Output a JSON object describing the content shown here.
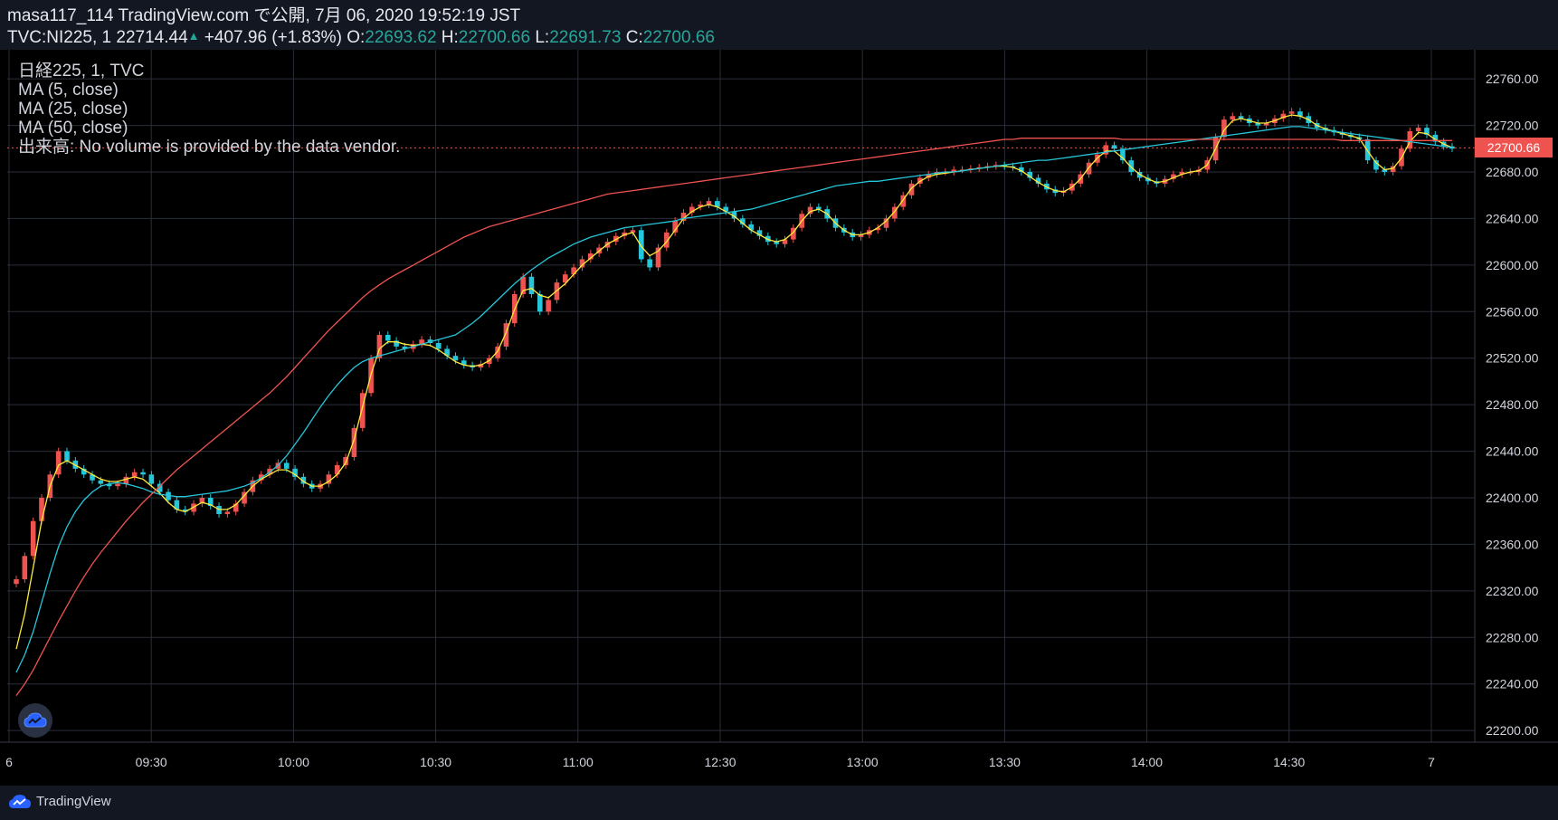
{
  "header": {
    "publish_line": "masa117_114 TradingView.com で公開, 7月 06, 2020 19:52:19 JST",
    "symbol": "TVC:NI225, 1",
    "last": "22714.44",
    "change": "+407.96 (+1.83%)",
    "o_label": "O:",
    "o_value": "22693.62",
    "h_label": "H:",
    "h_value": "22700.66",
    "l_label": "L:",
    "l_value": "22691.73",
    "c_label": "C:",
    "c_value": "22700.66"
  },
  "legend": {
    "title": "日経225, 1, TVC",
    "ma5": "MA (5, close)",
    "ma25": "MA (25, close)",
    "ma50": "MA (50, close)",
    "volume": "出来高: No volume is provided by the data vendor."
  },
  "price_tag": "22700.66",
  "footer": {
    "brand": "TradingView"
  },
  "icons": {
    "cloud": "tradingview-cloud-icon",
    "up": "up-arrow-icon"
  },
  "colors": {
    "background": "#131722",
    "grid": "#2a2e39",
    "up": "#ef5350",
    "down": "#26c6da",
    "ma5": "#ffeb3b",
    "ma25": "#26c6da",
    "ma50": "#ef5350",
    "accent": "#26a69a"
  },
  "chart_data": {
    "type": "line",
    "title": "日経225, 1, TVC",
    "xlabel": "",
    "ylabel": "",
    "ylim": [
      22190,
      22785
    ],
    "y_ticks": [
      22200,
      22240,
      22280,
      22320,
      22360,
      22400,
      22440,
      22480,
      22520,
      22560,
      22600,
      22640,
      22680,
      22720,
      22760
    ],
    "x_tick_labels": [
      "6",
      "09:30",
      "10:00",
      "10:30",
      "11:00",
      "12:30",
      "13:00",
      "13:30",
      "14:00",
      "14:30",
      "7"
    ],
    "grid": true,
    "last_price": 22700.66,
    "price_points": [
      22330,
      22350,
      22380,
      22400,
      22420,
      22440,
      22432,
      22425,
      22420,
      22415,
      22412,
      22410,
      22412,
      22418,
      22422,
      22420,
      22412,
      22405,
      22398,
      22390,
      22388,
      22395,
      22400,
      22393,
      22386,
      22388,
      22395,
      22405,
      22415,
      22420,
      22425,
      22430,
      22425,
      22418,
      22412,
      22408,
      22412,
      22420,
      22428,
      22435,
      22460,
      22490,
      22520,
      22540,
      22535,
      22530,
      22528,
      22532,
      22536,
      22533,
      22528,
      22522,
      22518,
      22514,
      22512,
      22515,
      22520,
      22530,
      22550,
      22575,
      22590,
      22575,
      22560,
      22570,
      22585,
      22592,
      22598,
      22605,
      22610,
      22615,
      22620,
      22625,
      22628,
      22630,
      22605,
      22598,
      22615,
      22628,
      22638,
      22645,
      22650,
      22652,
      22655,
      22650,
      22646,
      22640,
      22635,
      22630,
      22625,
      22620,
      22618,
      22622,
      22632,
      22644,
      22650,
      22648,
      22640,
      22632,
      22628,
      22624,
      22626,
      22630,
      22632,
      22640,
      22650,
      22660,
      22670,
      22675,
      22678,
      22680,
      22680,
      22682,
      22682,
      22683,
      22684,
      22685,
      22686,
      22685,
      22684,
      22680,
      22675,
      22670,
      22665,
      22662,
      22664,
      22670,
      22678,
      22688,
      22695,
      22703,
      22700,
      22690,
      22680,
      22675,
      22672,
      22670,
      22674,
      22678,
      22680,
      22680,
      22682,
      22690,
      22710,
      22725,
      22728,
      22726,
      22722,
      22720,
      22722,
      22726,
      22730,
      22732,
      22728,
      22722,
      22718,
      22716,
      22714,
      22712,
      22710,
      22708,
      22690,
      22682,
      22680,
      22685,
      22700,
      22715,
      22718,
      22712,
      22706,
      22702,
      22700
    ],
    "series": [
      {
        "name": "MA (5, close)",
        "values": [
          22270,
          22300,
          22340,
          22380,
          22410,
          22428,
          22432,
          22428,
          22424,
          22420,
          22416,
          22414,
          22414,
          22416,
          22418,
          22416,
          22410,
          22404,
          22396,
          22390,
          22388,
          22392,
          22396,
          22394,
          22390,
          22390,
          22394,
          22402,
          22410,
          22416,
          22420,
          22424,
          22424,
          22420,
          22414,
          22410,
          22410,
          22414,
          22420,
          22430,
          22450,
          22478,
          22506,
          22528,
          22534,
          22534,
          22532,
          22531,
          22532,
          22531,
          22527,
          22522,
          22517,
          22514,
          22513,
          22514,
          22518,
          22526,
          22542,
          22562,
          22578,
          22580,
          22574,
          22572,
          22578,
          22584,
          22592,
          22600,
          22606,
          22612,
          22618,
          22622,
          22626,
          22628,
          22616,
          22608,
          22612,
          22620,
          22630,
          22640,
          22646,
          22650,
          22652,
          22650,
          22646,
          22642,
          22636,
          22630,
          22626,
          22622,
          22620,
          22622,
          22628,
          22638,
          22646,
          22648,
          22644,
          22636,
          22630,
          22626,
          22626,
          22628,
          22632,
          22638,
          22646,
          22656,
          22666,
          22672,
          22676,
          22678,
          22679,
          22680,
          22681,
          22682,
          22683,
          22684,
          22685,
          22685,
          22684,
          22681,
          22676,
          22671,
          22667,
          22664,
          22663,
          22667,
          22674,
          22684,
          22692,
          22698,
          22698,
          22692,
          22684,
          22678,
          22674,
          22671,
          22672,
          22675,
          22678,
          22680,
          22681,
          22686,
          22700,
          22716,
          22724,
          22726,
          22724,
          22722,
          22722,
          22724,
          22727,
          22729,
          22728,
          22725,
          22720,
          22717,
          22715,
          22713,
          22711,
          22709,
          22698,
          22688,
          22682,
          22683,
          22692,
          22706,
          22714,
          22713,
          22708,
          22704,
          22701
        ]
      },
      {
        "name": "MA (25, close)",
        "values": [
          22250,
          22265,
          22285,
          22310,
          22335,
          22358,
          22375,
          22388,
          22398,
          22405,
          22410,
          22412,
          22413,
          22412,
          22410,
          22408,
          22405,
          22403,
          22402,
          22401,
          22401,
          22402,
          22403,
          22404,
          22405,
          22406,
          22408,
          22410,
          22413,
          22417,
          22422,
          22428,
          22436,
          22446,
          22456,
          22467,
          22478,
          22488,
          22497,
          22505,
          22512,
          22517,
          22520,
          22522,
          22524,
          22526,
          22528,
          22530,
          22532,
          22534,
          22536,
          22538,
          22540,
          22545,
          22550,
          22556,
          22563,
          22570,
          22577,
          22584,
          22590,
          22596,
          22601,
          22606,
          22610,
          22614,
          22618,
          22621,
          22624,
          22626,
          22628,
          22630,
          22632,
          22633,
          22634,
          22635,
          22636,
          22637,
          22638,
          22640,
          22641,
          22642,
          22643,
          22644,
          22645,
          22646,
          22647,
          22648,
          22650,
          22652,
          22654,
          22656,
          22658,
          22660,
          22662,
          22664,
          22666,
          22668,
          22669,
          22670,
          22671,
          22672,
          22672,
          22673,
          22674,
          22675,
          22676,
          22677,
          22678,
          22679,
          22680,
          22680,
          22681,
          22682,
          22683,
          22684,
          22685,
          22686,
          22687,
          22688,
          22689,
          22690,
          22690,
          22691,
          22692,
          22693,
          22694,
          22695,
          22696,
          22697,
          22698,
          22699,
          22700,
          22701,
          22702,
          22703,
          22704,
          22705,
          22706,
          22707,
          22708,
          22709,
          22710,
          22711,
          22712,
          22713,
          22714,
          22715,
          22716,
          22717,
          22718,
          22719,
          22719,
          22718,
          22717,
          22716,
          22715,
          22714,
          22713,
          22712,
          22711,
          22710,
          22709,
          22708,
          22707,
          22706,
          22705,
          22704,
          22703,
          22702,
          22701
        ]
      },
      {
        "name": "MA (50, close)",
        "values": [
          22230,
          22240,
          22252,
          22266,
          22280,
          22294,
          22307,
          22320,
          22332,
          22343,
          22353,
          22362,
          22371,
          22380,
          22388,
          22396,
          22403,
          22410,
          22417,
          22424,
          22430,
          22436,
          22442,
          22448,
          22454,
          22460,
          22466,
          22472,
          22478,
          22484,
          22490,
          22497,
          22504,
          22512,
          22520,
          22528,
          22536,
          22544,
          22551,
          22558,
          22565,
          22572,
          22578,
          22583,
          22588,
          22592,
          22596,
          22600,
          22604,
          22608,
          22612,
          22616,
          22620,
          22624,
          22627,
          22630,
          22633,
          22635,
          22637,
          22639,
          22641,
          22643,
          22645,
          22647,
          22649,
          22651,
          22653,
          22655,
          22657,
          22659,
          22661,
          22662,
          22663,
          22664,
          22665,
          22666,
          22667,
          22668,
          22669,
          22670,
          22671,
          22672,
          22673,
          22674,
          22675,
          22676,
          22677,
          22678,
          22679,
          22680,
          22681,
          22682,
          22683,
          22684,
          22685,
          22686,
          22687,
          22688,
          22689,
          22690,
          22691,
          22692,
          22693,
          22694,
          22695,
          22696,
          22697,
          22698,
          22699,
          22700,
          22701,
          22702,
          22703,
          22704,
          22705,
          22706,
          22707,
          22708,
          22708,
          22709,
          22709,
          22709,
          22709,
          22709,
          22709,
          22709,
          22709,
          22709,
          22709,
          22709,
          22709,
          22708,
          22708,
          22708,
          22708,
          22708,
          22708,
          22708,
          22708,
          22708,
          22708,
          22708,
          22708,
          22708,
          22708,
          22708,
          22708,
          22708,
          22708,
          22708,
          22708,
          22708,
          22708,
          22708,
          22708,
          22708,
          22708,
          22707,
          22707,
          22707,
          22707,
          22707,
          22707,
          22707,
          22707,
          22707,
          22707,
          22707,
          22707,
          22707,
          22707
        ]
      }
    ]
  }
}
